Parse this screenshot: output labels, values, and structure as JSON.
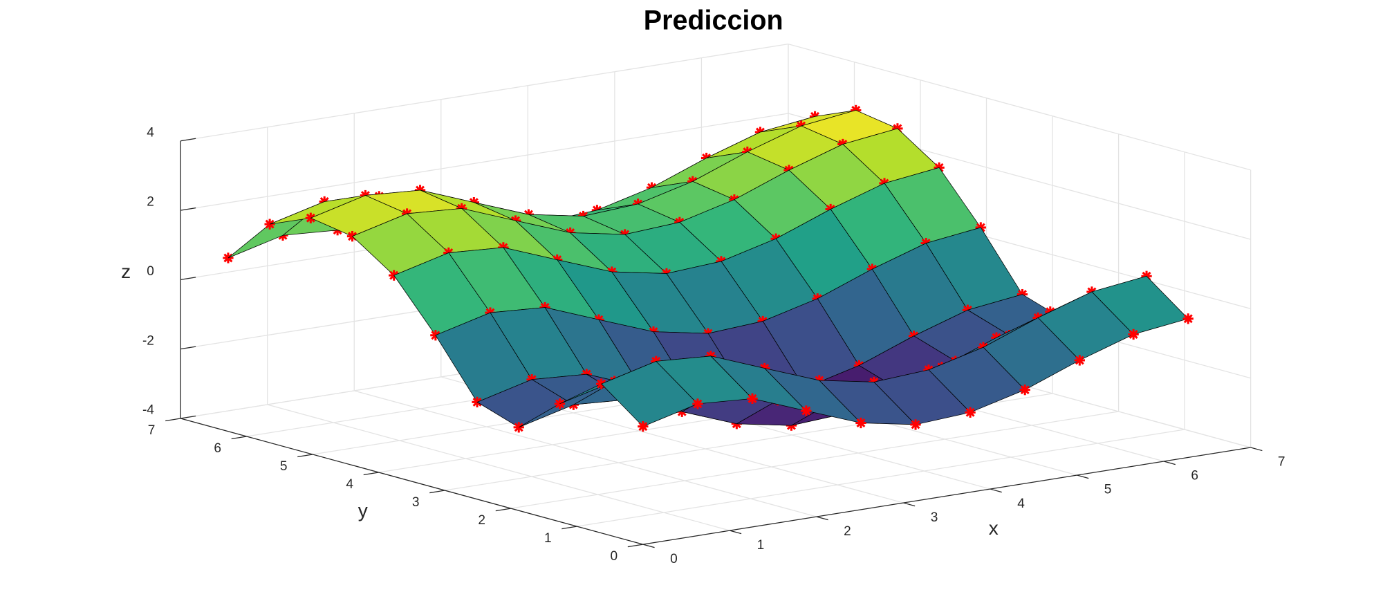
{
  "chart_data": {
    "type": "surface",
    "title": "Prediccion",
    "x_label": "x",
    "y_label": "y",
    "z_label": "z",
    "x": [
      0,
      0.63,
      1.26,
      1.88,
      2.51,
      3.14,
      3.77,
      4.4,
      5.03,
      5.65,
      6.28
    ],
    "y": [
      0,
      0.63,
      1.26,
      1.88,
      2.51,
      3.14,
      3.77,
      4.4,
      5.03,
      5.65,
      6.28
    ],
    "z": [
      [
        -0.6,
        -0.2,
        -0.3,
        -0.9,
        -1.5,
        -1.8,
        -1.7,
        -1.3,
        -0.7,
        -0.2,
        0
      ],
      [
        0.3,
        0.7,
        0.6,
        0,
        -0.6,
        -0.9,
        -0.8,
        -0.4,
        0.2,
        0.7,
        0.9
      ],
      [
        -0.6,
        -0.2,
        -0.3,
        -0.9,
        -1.5,
        -1.8,
        -1.7,
        -1.3,
        -0.7,
        -0.2,
        0
      ],
      [
        -1.6,
        -1.2,
        -1.3,
        -1.9,
        -2.5,
        -2.8,
        -2.7,
        -2.3,
        -1.7,
        -1.2,
        -1
      ],
      [
        -1.2,
        -0.8,
        -0.9,
        -1.5,
        -2.1,
        -2.4,
        -2.3,
        -1.9,
        -1.3,
        -0.8,
        -0.6
      ],
      [
        0.4,
        0.8,
        0.7,
        0.1,
        -0.5,
        -0.8,
        -0.7,
        -0.3,
        0.3,
        0.8,
        1
      ],
      [
        1.8,
        2.2,
        2.1,
        1.5,
        0.9,
        0.6,
        0.7,
        1.1,
        1.7,
        2.2,
        2.4
      ],
      [
        2.6,
        3,
        2.9,
        2.3,
        1.7,
        1.4,
        1.5,
        1.9,
        2.5,
        3,
        3.2
      ],
      [
        2.8,
        3.2,
        3.1,
        2.5,
        1.9,
        1.6,
        1.7,
        2.1,
        2.7,
        3.2,
        3.4
      ],
      [
        2.3,
        2.7,
        2.6,
        2,
        1.4,
        1.1,
        1.2,
        1.6,
        2.2,
        2.7,
        2.9
      ],
      [
        1,
        1.4,
        1.3,
        0.7,
        0.1,
        -0.2,
        -0.1,
        0.3,
        0.9,
        1.4,
        1.6
      ]
    ],
    "colormap": "viridis",
    "edge_color": "#000000",
    "marker_color": "#ff0000",
    "xlim": [
      0,
      7
    ],
    "ylim": [
      0,
      7
    ],
    "zlim": [
      -4,
      4
    ],
    "xticks": [
      0,
      1,
      2,
      3,
      4,
      5,
      6,
      7
    ],
    "yticks": [
      0,
      1,
      2,
      3,
      4,
      5,
      6,
      7
    ],
    "zticks": [
      -4,
      -2,
      0,
      2,
      4
    ],
    "grid": true
  }
}
